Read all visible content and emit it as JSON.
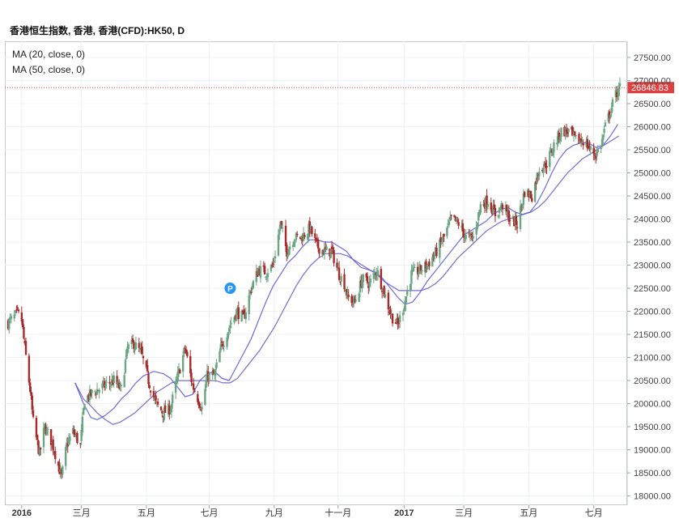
{
  "title": "香港恒生指数, 香港, 香港(CFD):HK50, D",
  "legend": [
    "MA (20, close, 0)",
    "MA (50, close, 0)"
  ],
  "current_price_label": "26846.83",
  "event_marker": "P",
  "colors": {
    "up": "#6ba583",
    "down": "#a72a2a",
    "ma20": "#5a5ae0",
    "ma50": "#6a5acd",
    "price_line": "#e04040",
    "price_tag": "#e04040",
    "marker": "#2196f3"
  },
  "chart_data": {
    "type": "candlestick",
    "y_axis_position": "right",
    "ylim": [
      17800,
      27850
    ],
    "yticks": [
      18000,
      18500,
      19000,
      19500,
      20000,
      20500,
      21000,
      21500,
      22000,
      22500,
      23000,
      23500,
      24000,
      24500,
      25000,
      25500,
      26000,
      26500,
      27000,
      27500
    ],
    "ytick_labels": [
      "18000.00",
      "18500.00",
      "19000.00",
      "19500.00",
      "20000.00",
      "20500.00",
      "21000.00",
      "21500.00",
      "22000.00",
      "22500.00",
      "23000.00",
      "23500.00",
      "24000.00",
      "24500.00",
      "25000.00",
      "25500.00",
      "26000.00",
      "26500.00",
      "27000.00",
      "27500.00"
    ],
    "xtick_labels": [
      {
        "label": "2016",
        "date": "2016-01-04",
        "bold": true
      },
      {
        "label": "三月",
        "date": "2016-03-01"
      },
      {
        "label": "五月",
        "date": "2016-05-02"
      },
      {
        "label": "七月",
        "date": "2016-07-01"
      },
      {
        "label": "九月",
        "date": "2016-09-01"
      },
      {
        "label": "十一月",
        "date": "2016-11-01"
      },
      {
        "label": "2017",
        "date": "2017-01-03",
        "bold": true
      },
      {
        "label": "三月",
        "date": "2017-03-01"
      },
      {
        "label": "五月",
        "date": "2017-05-02"
      },
      {
        "label": "七月",
        "date": "2017-07-03"
      }
    ],
    "x_range": [
      "2015-12-22",
      "2017-07-28"
    ],
    "last_close": 26846.83,
    "close_path": [
      [
        "2015-12-22",
        21750
      ],
      [
        "2015-12-31",
        21950
      ],
      [
        "2016-01-04",
        21800
      ],
      [
        "2016-01-07",
        21200
      ],
      [
        "2016-01-12",
        20300
      ],
      [
        "2016-01-15",
        19600
      ],
      [
        "2016-01-21",
        18900
      ],
      [
        "2016-01-26",
        19500
      ],
      [
        "2016-02-01",
        19200
      ],
      [
        "2016-02-04",
        19000
      ],
      [
        "2016-02-11",
        18400
      ],
      [
        "2016-02-16",
        19100
      ],
      [
        "2016-02-22",
        19400
      ],
      [
        "2016-02-29",
        19100
      ],
      [
        "2016-03-04",
        20100
      ],
      [
        "2016-03-10",
        20200
      ],
      [
        "2016-03-16",
        20300
      ],
      [
        "2016-03-24",
        20400
      ],
      [
        "2016-04-01",
        20500
      ],
      [
        "2016-04-08",
        20300
      ],
      [
        "2016-04-14",
        21200
      ],
      [
        "2016-04-20",
        21300
      ],
      [
        "2016-04-27",
        21100
      ],
      [
        "2016-05-04",
        20500
      ],
      [
        "2016-05-11",
        20000
      ],
      [
        "2016-05-18",
        19800
      ],
      [
        "2016-05-25",
        19900
      ],
      [
        "2016-06-01",
        20600
      ],
      [
        "2016-06-08",
        21200
      ],
      [
        "2016-06-15",
        20400
      ],
      [
        "2016-06-24",
        19900
      ],
      [
        "2016-06-29",
        20600
      ],
      [
        "2016-07-06",
        20600
      ],
      [
        "2016-07-12",
        21200
      ],
      [
        "2016-07-20",
        21650
      ],
      [
        "2016-07-27",
        22000
      ],
      [
        "2016-08-03",
        21850
      ],
      [
        "2016-08-10",
        22500
      ],
      [
        "2016-08-17",
        22900
      ],
      [
        "2016-08-24",
        22850
      ],
      [
        "2016-08-31",
        23000
      ],
      [
        "2016-09-07",
        23900
      ],
      [
        "2016-09-13",
        23300
      ],
      [
        "2016-09-20",
        23600
      ],
      [
        "2016-09-27",
        23600
      ],
      [
        "2016-10-05",
        23800
      ],
      [
        "2016-10-12",
        23400
      ],
      [
        "2016-10-19",
        23300
      ],
      [
        "2016-10-26",
        23300
      ],
      [
        "2016-11-02",
        22800
      ],
      [
        "2016-11-07",
        22600
      ],
      [
        "2016-11-10",
        22300
      ],
      [
        "2016-11-17",
        22200
      ],
      [
        "2016-11-24",
        22700
      ],
      [
        "2016-12-01",
        22600
      ],
      [
        "2016-12-08",
        22900
      ],
      [
        "2016-12-15",
        22400
      ],
      [
        "2016-12-22",
        21900
      ],
      [
        "2016-12-28",
        21700
      ],
      [
        "2017-01-03",
        22150
      ],
      [
        "2017-01-10",
        22800
      ],
      [
        "2017-01-18",
        22900
      ],
      [
        "2017-01-25",
        23000
      ],
      [
        "2017-02-03",
        23300
      ],
      [
        "2017-02-10",
        23600
      ],
      [
        "2017-02-17",
        24000
      ],
      [
        "2017-02-24",
        23900
      ],
      [
        "2017-03-03",
        23600
      ],
      [
        "2017-03-10",
        23600
      ],
      [
        "2017-03-17",
        24300
      ],
      [
        "2017-03-24",
        24400
      ],
      [
        "2017-03-31",
        24100
      ],
      [
        "2017-04-07",
        24300
      ],
      [
        "2017-04-14",
        24000
      ],
      [
        "2017-04-21",
        23900
      ],
      [
        "2017-04-28",
        24600
      ],
      [
        "2017-05-05",
        24500
      ],
      [
        "2017-05-12",
        25100
      ],
      [
        "2017-05-19",
        25200
      ],
      [
        "2017-05-26",
        25600
      ],
      [
        "2017-06-02",
        25900
      ],
      [
        "2017-06-09",
        25900
      ],
      [
        "2017-06-16",
        25700
      ],
      [
        "2017-06-23",
        25700
      ],
      [
        "2017-06-30",
        25500
      ],
      [
        "2017-07-05",
        25400
      ],
      [
        "2017-07-10",
        25600
      ],
      [
        "2017-07-14",
        26000
      ],
      [
        "2017-07-19",
        26350
      ],
      [
        "2017-07-24",
        26700
      ],
      [
        "2017-07-28",
        26846.83
      ]
    ],
    "ma20": [
      [
        "2016-02-24",
        20450
      ],
      [
        "2016-03-03",
        20000
      ],
      [
        "2016-03-10",
        19700
      ],
      [
        "2016-03-16",
        19650
      ],
      [
        "2016-03-24",
        19750
      ],
      [
        "2016-04-01",
        19900
      ],
      [
        "2016-04-08",
        20100
      ],
      [
        "2016-04-15",
        20250
      ],
      [
        "2016-04-22",
        20450
      ],
      [
        "2016-04-29",
        20600
      ],
      [
        "2016-05-09",
        20700
      ],
      [
        "2016-05-18",
        20650
      ],
      [
        "2016-05-25",
        20550
      ],
      [
        "2016-06-01",
        20350
      ],
      [
        "2016-06-08",
        20150
      ],
      [
        "2016-06-15",
        20200
      ],
      [
        "2016-06-22",
        20500
      ],
      [
        "2016-06-29",
        20650
      ],
      [
        "2016-07-06",
        20700
      ],
      [
        "2016-07-13",
        20550
      ],
      [
        "2016-07-20",
        20500
      ],
      [
        "2016-07-27",
        20800
      ],
      [
        "2016-08-03",
        21100
      ],
      [
        "2016-08-10",
        21400
      ],
      [
        "2016-08-17",
        21800
      ],
      [
        "2016-08-24",
        22200
      ],
      [
        "2016-08-31",
        22550
      ],
      [
        "2016-09-07",
        22800
      ],
      [
        "2016-09-14",
        23050
      ],
      [
        "2016-09-21",
        23200
      ],
      [
        "2016-09-28",
        23400
      ],
      [
        "2016-10-05",
        23550
      ],
      [
        "2016-10-12",
        23550
      ],
      [
        "2016-10-19",
        23500
      ],
      [
        "2016-10-26",
        23500
      ],
      [
        "2016-11-02",
        23400
      ],
      [
        "2016-11-09",
        23300
      ],
      [
        "2016-11-16",
        23100
      ],
      [
        "2016-11-23",
        22950
      ],
      [
        "2016-11-30",
        22900
      ],
      [
        "2016-12-07",
        22850
      ],
      [
        "2016-12-14",
        22700
      ],
      [
        "2016-12-21",
        22500
      ],
      [
        "2016-12-28",
        22300
      ],
      [
        "2017-01-04",
        22150
      ],
      [
        "2017-01-11",
        22200
      ],
      [
        "2017-01-18",
        22400
      ],
      [
        "2017-01-25",
        22650
      ],
      [
        "2017-02-01",
        22850
      ],
      [
        "2017-02-08",
        23050
      ],
      [
        "2017-02-15",
        23250
      ],
      [
        "2017-02-22",
        23450
      ],
      [
        "2017-03-01",
        23650
      ],
      [
        "2017-03-08",
        23750
      ],
      [
        "2017-03-15",
        23850
      ],
      [
        "2017-03-22",
        23950
      ],
      [
        "2017-03-29",
        24100
      ],
      [
        "2017-04-05",
        24200
      ],
      [
        "2017-04-12",
        24250
      ],
      [
        "2017-04-19",
        24150
      ],
      [
        "2017-04-26",
        24100
      ],
      [
        "2017-05-03",
        24150
      ],
      [
        "2017-05-10",
        24350
      ],
      [
        "2017-05-17",
        24650
      ],
      [
        "2017-05-24",
        25000
      ],
      [
        "2017-05-31",
        25300
      ],
      [
        "2017-06-07",
        25500
      ],
      [
        "2017-06-14",
        25600
      ],
      [
        "2017-06-21",
        25650
      ],
      [
        "2017-06-28",
        25650
      ],
      [
        "2017-07-05",
        25550
      ],
      [
        "2017-07-12",
        25600
      ],
      [
        "2017-07-19",
        25800
      ],
      [
        "2017-07-26",
        26050
      ]
    ],
    "ma50": [
      [
        "2016-02-24",
        20450
      ],
      [
        "2016-03-03",
        20100
      ],
      [
        "2016-03-10",
        19950
      ],
      [
        "2016-03-16",
        19800
      ],
      [
        "2016-03-24",
        19650
      ],
      [
        "2016-03-31",
        19550
      ],
      [
        "2016-04-07",
        19600
      ],
      [
        "2016-04-14",
        19700
      ],
      [
        "2016-04-21",
        19800
      ],
      [
        "2016-04-28",
        19950
      ],
      [
        "2016-05-05",
        20100
      ],
      [
        "2016-05-12",
        20250
      ],
      [
        "2016-05-19",
        20350
      ],
      [
        "2016-05-26",
        20450
      ],
      [
        "2016-06-02",
        20500
      ],
      [
        "2016-06-09",
        20500
      ],
      [
        "2016-06-16",
        20500
      ],
      [
        "2016-06-23",
        20500
      ],
      [
        "2016-06-30",
        20500
      ],
      [
        "2016-07-07",
        20500
      ],
      [
        "2016-07-14",
        20450
      ],
      [
        "2016-07-21",
        20450
      ],
      [
        "2016-07-28",
        20550
      ],
      [
        "2016-08-04",
        20750
      ],
      [
        "2016-08-11",
        20950
      ],
      [
        "2016-08-18",
        21150
      ],
      [
        "2016-08-25",
        21400
      ],
      [
        "2016-09-01",
        21650
      ],
      [
        "2016-09-08",
        21950
      ],
      [
        "2016-09-15",
        22250
      ],
      [
        "2016-09-22",
        22550
      ],
      [
        "2016-09-29",
        22800
      ],
      [
        "2016-10-06",
        23000
      ],
      [
        "2016-10-13",
        23150
      ],
      [
        "2016-10-20",
        23250
      ],
      [
        "2016-10-27",
        23250
      ],
      [
        "2016-11-03",
        23250
      ],
      [
        "2016-11-10",
        23200
      ],
      [
        "2016-11-17",
        23100
      ],
      [
        "2016-11-24",
        23000
      ],
      [
        "2016-12-01",
        22900
      ],
      [
        "2016-12-08",
        22800
      ],
      [
        "2016-12-15",
        22650
      ],
      [
        "2016-12-22",
        22550
      ],
      [
        "2016-12-29",
        22450
      ],
      [
        "2017-01-05",
        22450
      ],
      [
        "2017-01-12",
        22450
      ],
      [
        "2017-01-19",
        22450
      ],
      [
        "2017-01-26",
        22500
      ],
      [
        "2017-02-02",
        22600
      ],
      [
        "2017-02-09",
        22750
      ],
      [
        "2017-02-16",
        22950
      ],
      [
        "2017-02-23",
        23150
      ],
      [
        "2017-03-02",
        23300
      ],
      [
        "2017-03-09",
        23450
      ],
      [
        "2017-03-16",
        23600
      ],
      [
        "2017-03-23",
        23750
      ],
      [
        "2017-03-30",
        23850
      ],
      [
        "2017-04-06",
        23950
      ],
      [
        "2017-04-13",
        24000
      ],
      [
        "2017-04-20",
        24050
      ],
      [
        "2017-04-27",
        24100
      ],
      [
        "2017-05-04",
        24150
      ],
      [
        "2017-05-11",
        24250
      ],
      [
        "2017-05-18",
        24400
      ],
      [
        "2017-05-25",
        24600
      ],
      [
        "2017-06-01",
        24800
      ],
      [
        "2017-06-08",
        25000
      ],
      [
        "2017-06-15",
        25150
      ],
      [
        "2017-06-22",
        25300
      ],
      [
        "2017-06-29",
        25400
      ],
      [
        "2017-07-06",
        25500
      ],
      [
        "2017-07-13",
        25600
      ],
      [
        "2017-07-20",
        25700
      ],
      [
        "2017-07-27",
        25800
      ]
    ],
    "grid": true,
    "legend_position": "top-left"
  }
}
